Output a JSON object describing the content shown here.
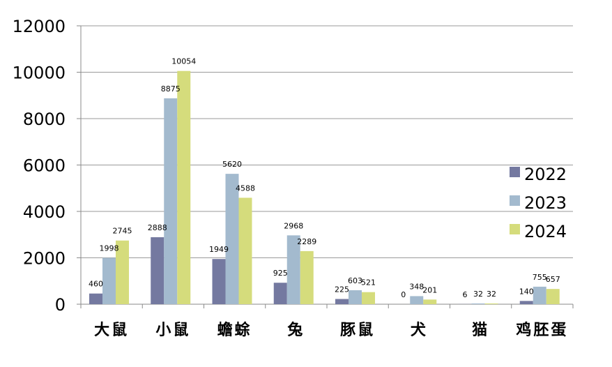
{
  "chart_data": {
    "type": "bar",
    "categories": [
      "大鼠",
      "小鼠",
      "蟾蜍",
      "兔",
      "豚鼠",
      "犬",
      "猫",
      "鸡胚蛋"
    ],
    "series": [
      {
        "name": "2022",
        "color": "#7479a0",
        "values": [
          460,
          2888,
          1949,
          925,
          225,
          0,
          6,
          140
        ]
      },
      {
        "name": "2023",
        "color": "#a3bace",
        "values": [
          1998,
          8875,
          5620,
          2968,
          603,
          348,
          32,
          755
        ]
      },
      {
        "name": "2024",
        "color": "#d5dc7c",
        "values": [
          2745,
          10054,
          4588,
          2289,
          521,
          201,
          32,
          657
        ]
      }
    ],
    "ylim": [
      0,
      12000
    ],
    "yticks": [
      0,
      2000,
      4000,
      6000,
      8000,
      10000,
      12000
    ],
    "grid": true,
    "legend_position": "right"
  }
}
